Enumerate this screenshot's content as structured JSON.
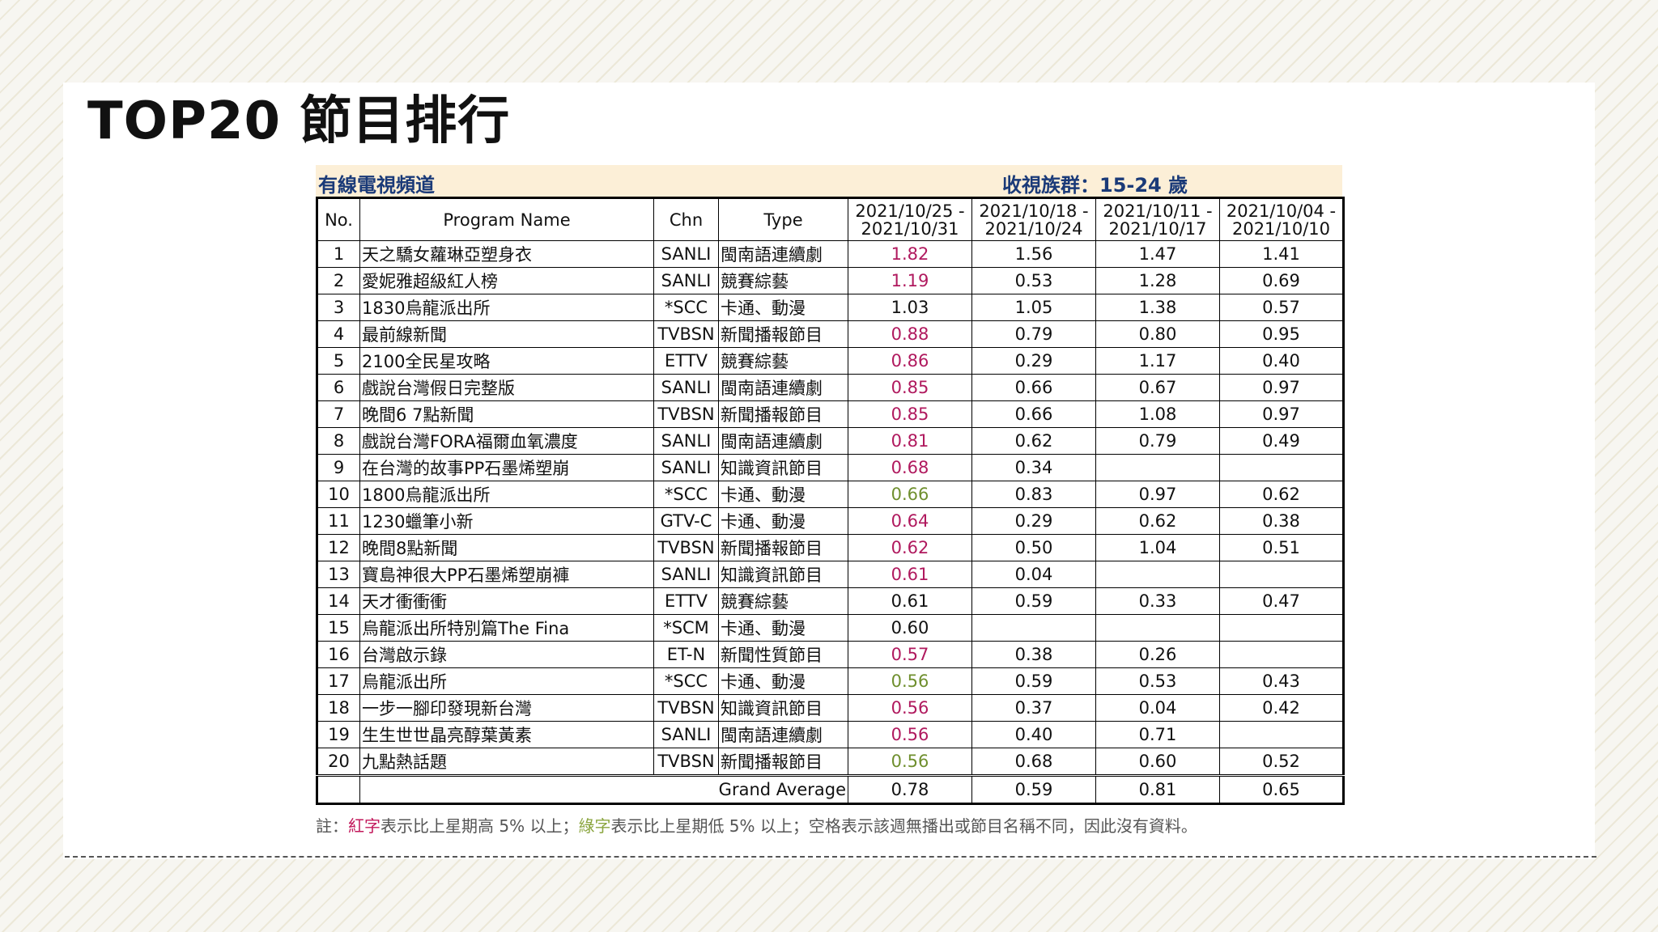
{
  "title": "TOP20 節目排行",
  "band": {
    "left": "有線電視頻道",
    "right": "收視族群：15-24 歲"
  },
  "headers": {
    "no": "No.",
    "name": "Program Name",
    "chn": "Chn",
    "type": "Type",
    "w1": [
      "2021/10/25 -",
      "2021/10/31"
    ],
    "w2": [
      "2021/10/18 -",
      "2021/10/24"
    ],
    "w3": [
      "2021/10/11 -",
      "2021/10/17"
    ],
    "w4": [
      "2021/10/04 -",
      "2021/10/10"
    ]
  },
  "rows": [
    {
      "no": "1",
      "name": "天之驕女蘿琳亞塑身衣",
      "chn": "SANLI",
      "type": "閩南語連續劇",
      "w1": "1.82",
      "w1_color": "red",
      "w2": "1.56",
      "w3": "1.47",
      "w4": "1.41"
    },
    {
      "no": "2",
      "name": "愛妮雅超級紅人榜",
      "chn": "SANLI",
      "type": "競賽綜藝",
      "w1": "1.19",
      "w1_color": "red",
      "w2": "0.53",
      "w3": "1.28",
      "w4": "0.69"
    },
    {
      "no": "3",
      "name": "1830烏龍派出所",
      "chn": "*SCC",
      "type": "卡通、動漫",
      "w1": "1.03",
      "w1_color": "black",
      "w2": "1.05",
      "w3": "1.38",
      "w4": "0.57"
    },
    {
      "no": "4",
      "name": "最前線新聞",
      "chn": "TVBSN",
      "type": "新聞播報節目",
      "w1": "0.88",
      "w1_color": "red",
      "w2": "0.79",
      "w3": "0.80",
      "w4": "0.95"
    },
    {
      "no": "5",
      "name": "2100全民星攻略",
      "chn": "ETTV",
      "type": "競賽綜藝",
      "w1": "0.86",
      "w1_color": "red",
      "w2": "0.29",
      "w3": "1.17",
      "w4": "0.40"
    },
    {
      "no": "6",
      "name": "戲說台灣假日完整版",
      "chn": "SANLI",
      "type": "閩南語連續劇",
      "w1": "0.85",
      "w1_color": "red",
      "w2": "0.66",
      "w3": "0.67",
      "w4": "0.97"
    },
    {
      "no": "7",
      "name": "晚間6 7點新聞",
      "chn": "TVBSN",
      "type": "新聞播報節目",
      "w1": "0.85",
      "w1_color": "red",
      "w2": "0.66",
      "w3": "1.08",
      "w4": "0.97"
    },
    {
      "no": "8",
      "name": "戲說台灣FORA福爾血氧濃度",
      "chn": "SANLI",
      "type": "閩南語連續劇",
      "w1": "0.81",
      "w1_color": "red",
      "w2": "0.62",
      "w3": "0.79",
      "w4": "0.49"
    },
    {
      "no": "9",
      "name": "在台灣的故事PP石墨烯塑崩",
      "chn": "SANLI",
      "type": "知識資訊節目",
      "w1": "0.68",
      "w1_color": "red",
      "w2": "0.34",
      "w3": "",
      "w4": ""
    },
    {
      "no": "10",
      "name": "1800烏龍派出所",
      "chn": "*SCC",
      "type": "卡通、動漫",
      "w1": "0.66",
      "w1_color": "green",
      "w2": "0.83",
      "w3": "0.97",
      "w4": "0.62"
    },
    {
      "no": "11",
      "name": "1230蠟筆小新",
      "chn": "GTV-C",
      "type": "卡通、動漫",
      "w1": "0.64",
      "w1_color": "red",
      "w2": "0.29",
      "w3": "0.62",
      "w4": "0.38"
    },
    {
      "no": "12",
      "name": "晚間8點新聞",
      "chn": "TVBSN",
      "type": "新聞播報節目",
      "w1": "0.62",
      "w1_color": "red",
      "w2": "0.50",
      "w3": "1.04",
      "w4": "0.51"
    },
    {
      "no": "13",
      "name": "寶島神很大PP石墨烯塑崩褲",
      "chn": "SANLI",
      "type": "知識資訊節目",
      "w1": "0.61",
      "w1_color": "red",
      "w2": "0.04",
      "w3": "",
      "w4": ""
    },
    {
      "no": "14",
      "name": "天才衝衝衝",
      "chn": "ETTV",
      "type": "競賽綜藝",
      "w1": "0.61",
      "w1_color": "black",
      "w2": "0.59",
      "w3": "0.33",
      "w4": "0.47"
    },
    {
      "no": "15",
      "name": "烏龍派出所特別篇The Fina",
      "chn": "*SCM",
      "type": "卡通、動漫",
      "w1": "0.60",
      "w1_color": "black",
      "w2": "",
      "w3": "",
      "w4": ""
    },
    {
      "no": "16",
      "name": "台灣啟示錄",
      "chn": "ET-N",
      "type": "新聞性質節目",
      "w1": "0.57",
      "w1_color": "red",
      "w2": "0.38",
      "w3": "0.26",
      "w4": ""
    },
    {
      "no": "17",
      "name": "烏龍派出所",
      "chn": "*SCC",
      "type": "卡通、動漫",
      "w1": "0.56",
      "w1_color": "green",
      "w2": "0.59",
      "w3": "0.53",
      "w4": "0.43"
    },
    {
      "no": "18",
      "name": "一步一腳印發現新台灣",
      "chn": "TVBSN",
      "type": "知識資訊節目",
      "w1": "0.56",
      "w1_color": "red",
      "w2": "0.37",
      "w3": "0.04",
      "w4": "0.42"
    },
    {
      "no": "19",
      "name": "生生世世晶亮醇葉黃素",
      "chn": "SANLI",
      "type": "閩南語連續劇",
      "w1": "0.56",
      "w1_color": "red",
      "w2": "0.40",
      "w3": "0.71",
      "w4": ""
    },
    {
      "no": "20",
      "name": "九點熱話題",
      "chn": "TVBSN",
      "type": "新聞播報節目",
      "w1": "0.56",
      "w1_color": "green",
      "w2": "0.68",
      "w3": "0.60",
      "w4": "0.52"
    }
  ],
  "average": {
    "label": "Grand Average",
    "w1": "0.78",
    "w2": "0.59",
    "w3": "0.81",
    "w4": "0.65"
  },
  "note": {
    "prefix": "註：",
    "red_word": "紅字",
    "mid1": "表示比上星期高 5% 以上；",
    "green_word": "綠字",
    "mid2": "表示比上星期低 5% 以上；空格表示該週無播出或節目名稱不同，因此沒有資料。"
  },
  "colors": {
    "red": "#b0195e",
    "green": "#6f8f2e",
    "band_bg": "#fcefd7",
    "band_text": "#1a3a78"
  }
}
